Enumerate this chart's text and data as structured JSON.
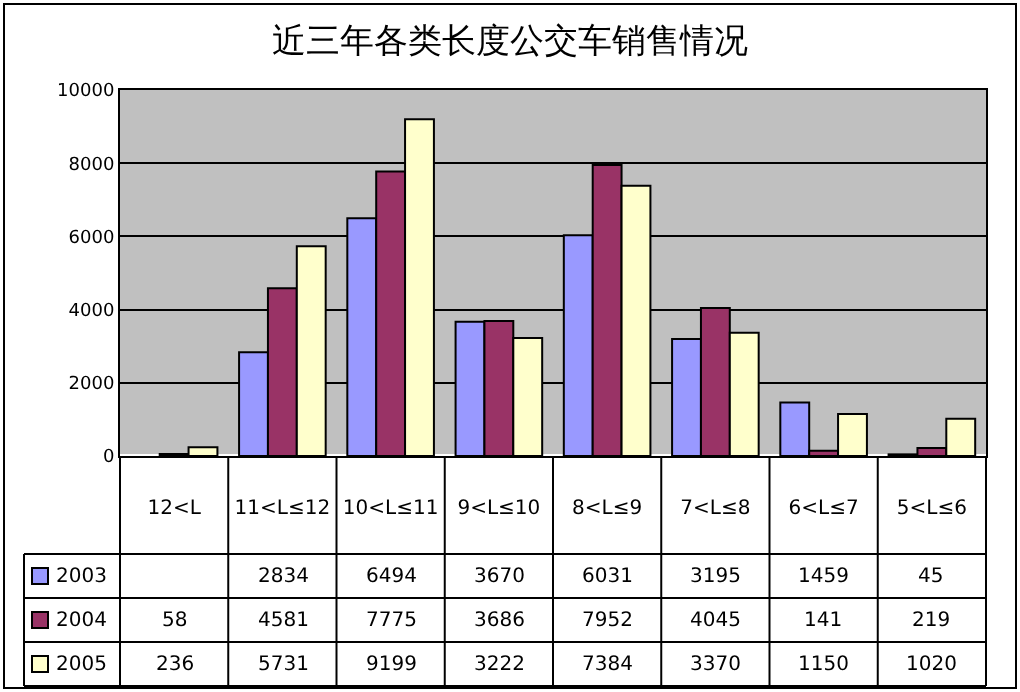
{
  "chart_data": {
    "type": "bar",
    "title": "近三年各类长度公交车销售情况",
    "categories": [
      "12<L",
      "11<L≤12",
      "10<L≤11",
      "9<L≤10",
      "8<L≤9",
      "7<L≤8",
      "6<L≤7",
      "5<L≤6"
    ],
    "series": [
      {
        "name": "2003",
        "color": "#9999ff",
        "values": [
          null,
          2834,
          6494,
          3670,
          6031,
          3195,
          1459,
          45
        ]
      },
      {
        "name": "2004",
        "color": "#993366",
        "values": [
          58,
          4581,
          7775,
          3686,
          7952,
          4045,
          141,
          219
        ]
      },
      {
        "name": "2005",
        "color": "#ffffcc",
        "values": [
          236,
          5731,
          9199,
          3222,
          7384,
          3370,
          1150,
          1020
        ]
      }
    ],
    "ylim": [
      0,
      10000
    ],
    "yticks": [
      0,
      2000,
      4000,
      6000,
      8000,
      10000
    ],
    "grid": "y",
    "legend": "bottom left",
    "data_labels": true
  }
}
